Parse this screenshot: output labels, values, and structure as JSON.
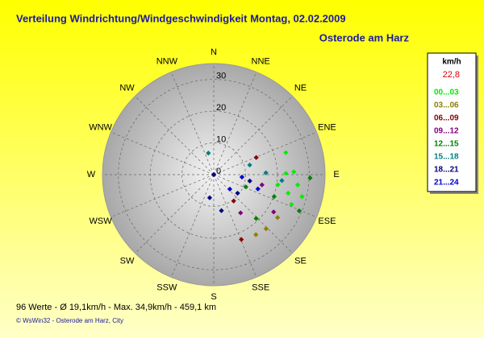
{
  "chart_data": {
    "type": "polar-scatter",
    "title": "Verteilung Windrichtung/Windgeschwindigkeit  Montag, 02.02.2009",
    "subtitle": "Osterode am Harz",
    "directions": [
      "N",
      "NNE",
      "NE",
      "ENE",
      "E",
      "ESE",
      "SE",
      "SSE",
      "S",
      "SSW",
      "SW",
      "WSW",
      "W",
      "WNW",
      "NW",
      "NNW"
    ],
    "rlim": [
      0,
      35
    ],
    "rticks": [
      0,
      10,
      20,
      30
    ],
    "grid": true,
    "legend_title": "km/h",
    "legend_value": "22,8",
    "series": [
      {
        "name": "00...03",
        "color": "#00ee00",
        "dir": [
          89,
          88,
          97,
          104,
          104,
          73,
          99,
          111
        ],
        "speed": [
          22.7,
          25.2,
          26.6,
          24.1,
          28.6,
          23.7,
          20.4,
          26.2
        ]
      },
      {
        "name": "03...06",
        "color": "#8c8000",
        "dir": [
          136,
          145,
          124
        ],
        "speed": [
          23.7,
          23.1,
          24.2
        ]
      },
      {
        "name": "06...09",
        "color": "#8b0000",
        "dir": [
          68,
          157,
          143
        ],
        "speed": [
          14.4,
          22.2,
          10.4
        ]
      },
      {
        "name": "09...12",
        "color": "#800080",
        "dir": [
          122,
          102,
          145
        ],
        "speed": [
          22.2,
          15.5,
          14.7
        ]
      },
      {
        "name": "12...15",
        "color": "#008000",
        "dir": [
          92,
          113,
          110,
          111,
          136
        ],
        "speed": [
          30.3,
          29.2,
          20.2,
          10.8,
          19.2
        ]
      },
      {
        "name": "15...18",
        "color": "#008080",
        "dir": [
          346,
          88,
          75,
          95
        ],
        "speed": [
          7.0,
          16.4,
          11.7,
          21.5
        ]
      },
      {
        "name": "18...21",
        "color": "#000080",
        "dir": [
          0,
          168,
          128,
          190,
          100
        ],
        "speed": [
          0,
          11.6,
          9.5,
          7.4,
          11.5
        ]
      },
      {
        "name": "21...24",
        "color": "#0000cc",
        "dir": [
          95,
          132,
          108
        ],
        "speed": [
          8.9,
          6.8,
          14.6
        ]
      }
    ],
    "footer": "96 Werte  -  Ø 19,1km/h  -  Max. 34,9km/h  -  459,1 km",
    "copyright": "© WsWin32  -  Osterode am Harz, City"
  }
}
